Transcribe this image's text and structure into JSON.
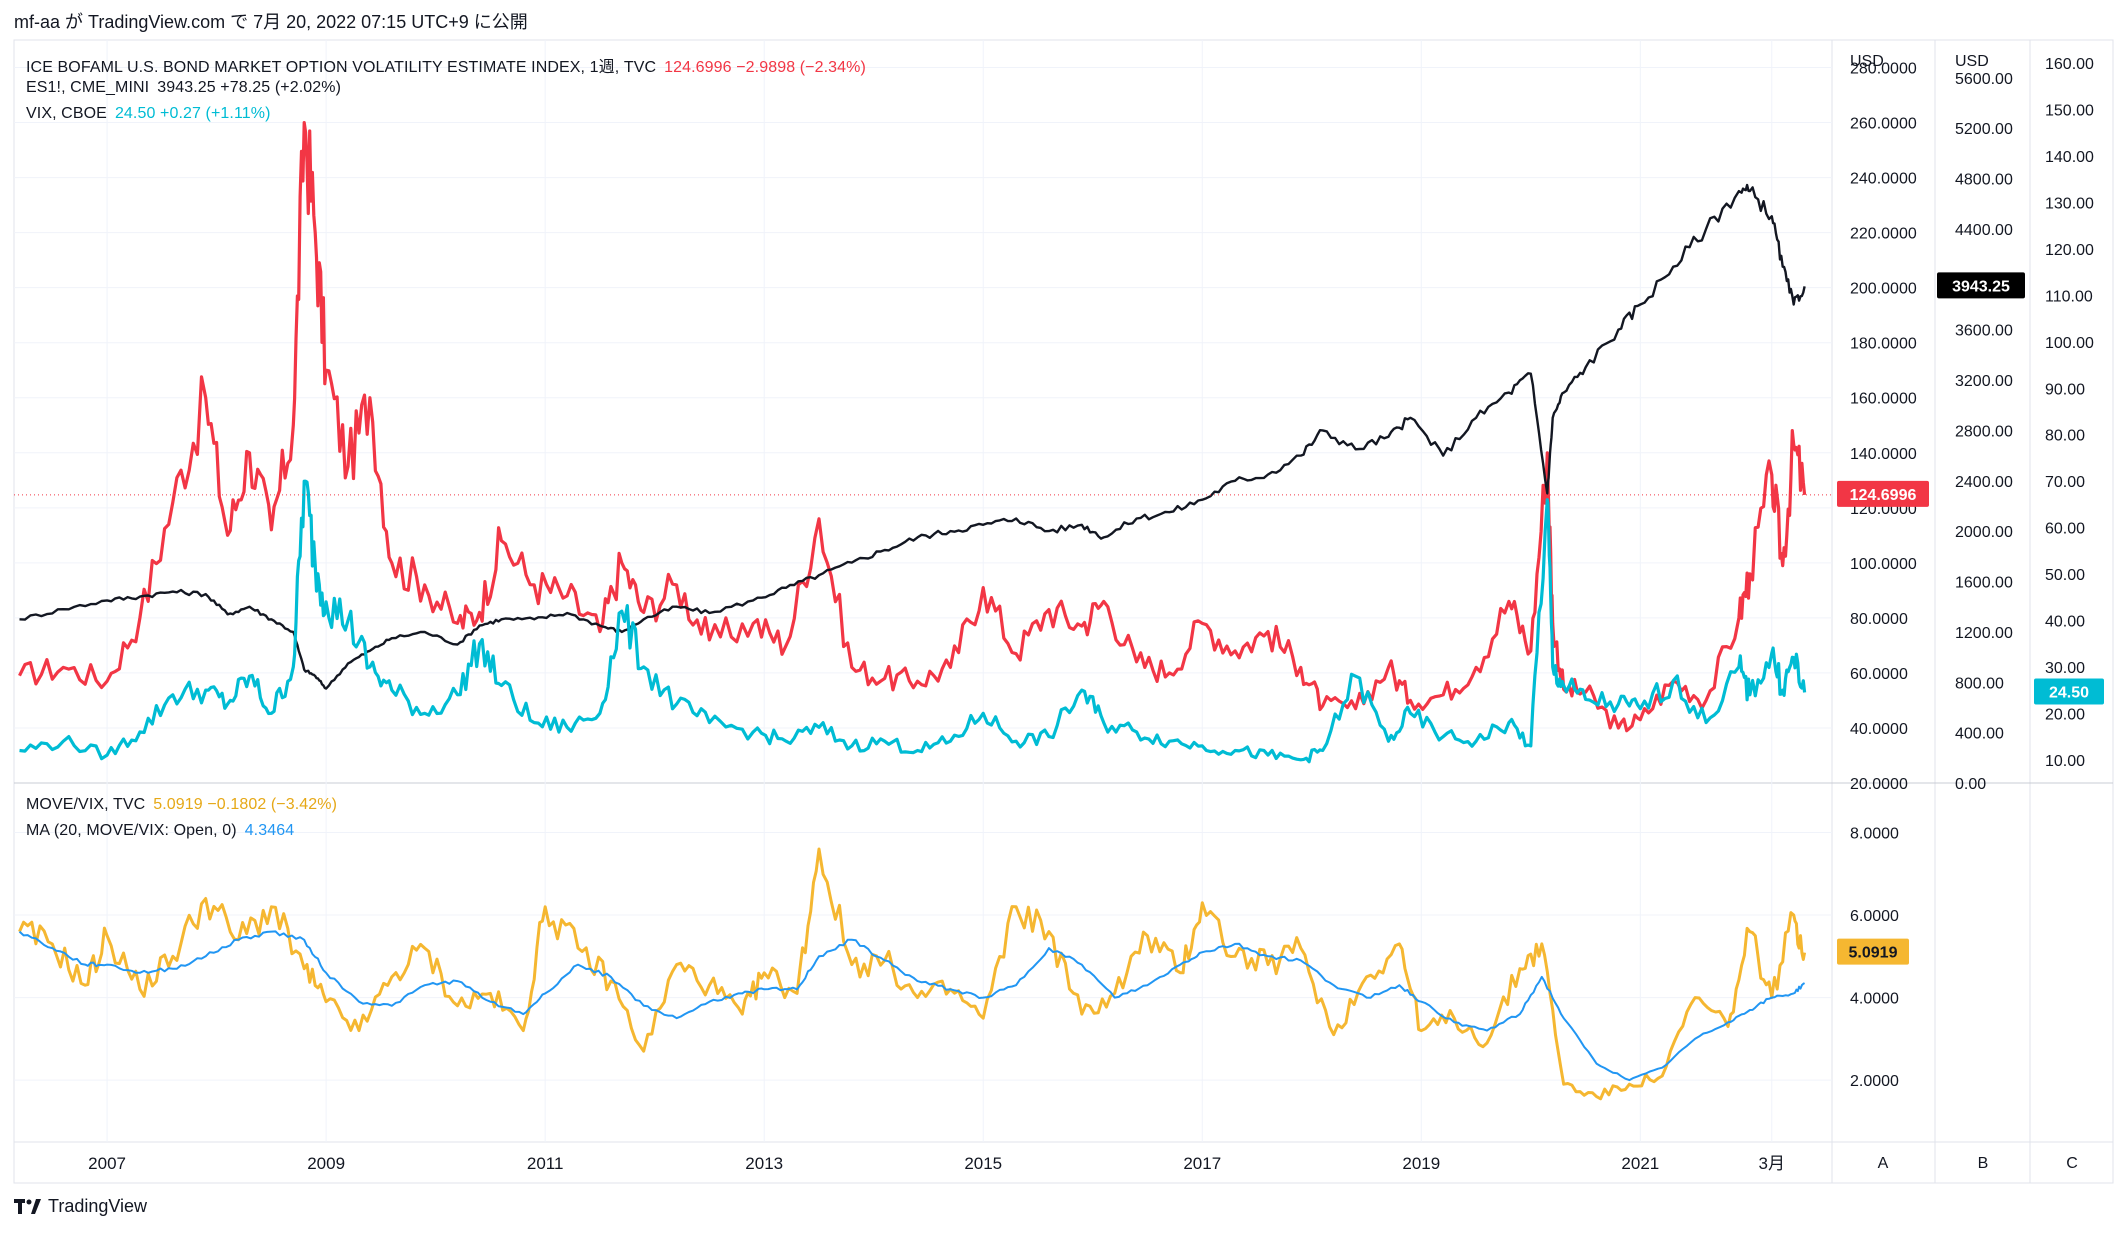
{
  "header": {
    "text": "mf-aa が TradingView.com で 7月 20, 2022 07:15 UTC+9 に公開"
  },
  "footer": {
    "brand": "TradingView"
  },
  "legends": {
    "move": {
      "name": "ICE BOFAML U.S. BOND MARKET OPTION VOLATILITY ESTIMATE INDEX, 1週, TVC",
      "values": "124.6996  −2.9898 (−2.34%)",
      "color": "#f23645"
    },
    "es": {
      "name": "ES1!, CME_MINI",
      "values": "3943.25  +78.25 (+2.02%)",
      "color": "#131722"
    },
    "vix": {
      "name": "VIX, CBOE",
      "values": "24.50  +0.27 (+1.11%)",
      "color": "#00bcd4"
    },
    "ratio": {
      "name": "MOVE/VIX, TVC",
      "values": "5.0919  −0.1802 (−3.42%)",
      "color": "#f5b731"
    },
    "ma": {
      "name": "MA (20, MOVE/VIX: Open, 0)",
      "values": "4.3464",
      "color": "#2196f3"
    }
  },
  "axes": {
    "scale_a_title": "USD",
    "scale_b_title": "USD",
    "scale_a_ticks": [
      "280.0000",
      "260.0000",
      "240.0000",
      "220.0000",
      "200.0000",
      "180.0000",
      "160.0000",
      "140.0000",
      "120.0000",
      "100.0000",
      "80.0000",
      "60.0000",
      "40.0000",
      "20.0000"
    ],
    "scale_b_ticks": [
      "5600.00",
      "5200.00",
      "4800.00",
      "4400.00",
      "4000.00",
      "3600.00",
      "3200.00",
      "2800.00",
      "2400.00",
      "2000.00",
      "1600.00",
      "1200.00",
      "800.00",
      "400.00",
      "0.00"
    ],
    "scale_c_ticks": [
      "160.00",
      "150.00",
      "140.00",
      "130.00",
      "120.00",
      "110.00",
      "100.00",
      "90.00",
      "80.00",
      "70.00",
      "60.00",
      "50.00",
      "40.00",
      "30.00",
      "20.00",
      "10.00"
    ],
    "lower_ticks": [
      "8.0000",
      "6.0000",
      "4.0000",
      "2.0000"
    ],
    "x_ticks": [
      "2007",
      "2009",
      "2011",
      "2013",
      "2015",
      "2017",
      "2019",
      "2021",
      "3月"
    ],
    "scale_buttons": [
      "A",
      "B",
      "C"
    ]
  },
  "badges": {
    "es": {
      "text": "3943.25",
      "bg": "#000000"
    },
    "move": {
      "text": "124.6996",
      "bg": "#f23645"
    },
    "vix": {
      "text": "24.50",
      "bg": "#00bcd4"
    },
    "ratio": {
      "text": "5.0919",
      "bg": "#f5b731"
    }
  },
  "chart_data": [
    {
      "type": "line",
      "title": "ICE BOFAML U.S. BOND MARKET OPTION VOLATILITY ESTIMATE INDEX / ES1! / VIX",
      "x": [
        2006.2,
        2006.6,
        2007.0,
        2007.3,
        2007.6,
        2007.9,
        2008.1,
        2008.3,
        2008.5,
        2008.7,
        2008.8,
        2008.9,
        2009.0,
        2009.2,
        2009.4,
        2009.6,
        2009.9,
        2010.2,
        2010.4,
        2010.6,
        2010.9,
        2011.2,
        2011.5,
        2011.7,
        2011.9,
        2012.2,
        2012.5,
        2012.9,
        2013.2,
        2013.5,
        2013.8,
        2014.1,
        2014.4,
        2014.7,
        2015.0,
        2015.3,
        2015.6,
        2015.9,
        2016.1,
        2016.4,
        2016.7,
        2017.0,
        2017.3,
        2017.6,
        2017.9,
        2018.1,
        2018.4,
        2018.7,
        2018.9,
        2019.2,
        2019.5,
        2019.8,
        2020.0,
        2020.15,
        2020.2,
        2020.3,
        2020.5,
        2020.8,
        2021.0,
        2021.3,
        2021.6,
        2021.9,
        2022.0,
        2022.2,
        2022.3,
        2022.4,
        2022.5
      ],
      "series": [
        {
          "name": "MOVE",
          "color": "#f23645",
          "axis": "A",
          "values": [
            59,
            62,
            57,
            80,
            122,
            160,
            110,
            140,
            112,
            150,
            260,
            220,
            170,
            135,
            160,
            100,
            92,
            78,
            82,
            108,
            92,
            88,
            75,
            100,
            82,
            92,
            72,
            78,
            70,
            116,
            62,
            58,
            57,
            62,
            91,
            67,
            83,
            77,
            86,
            64,
            60,
            78,
            68,
            75,
            62,
            48,
            47,
            62,
            50,
            52,
            62,
            86,
            68,
            140,
            78,
            54,
            53,
            40,
            43,
            57,
            50,
            80,
            96,
            132,
            99,
            143,
            124.7
          ]
        },
        {
          "name": "ES1!",
          "color": "#131722",
          "axis": "B",
          "values": [
            1300,
            1380,
            1450,
            1480,
            1520,
            1500,
            1340,
            1400,
            1300,
            1200,
            900,
            850,
            750,
            950,
            1050,
            1150,
            1200,
            1100,
            1250,
            1300,
            1300,
            1350,
            1250,
            1200,
            1300,
            1400,
            1350,
            1450,
            1550,
            1650,
            1750,
            1850,
            1950,
            2000,
            2050,
            2100,
            2000,
            2050,
            1950,
            2100,
            2150,
            2250,
            2400,
            2450,
            2600,
            2800,
            2650,
            2750,
            2900,
            2600,
            2900,
            3100,
            3250,
            2300,
            2900,
            3100,
            3300,
            3600,
            3800,
            4100,
            4400,
            4700,
            4700,
            4500,
            4100,
            3800,
            3943.25
          ]
        },
        {
          "name": "VIX",
          "color": "#00bcd4",
          "axis": "C",
          "values": [
            12,
            14,
            11,
            16,
            24,
            25,
            22,
            28,
            20,
            30,
            70,
            52,
            44,
            40,
            30,
            25,
            20,
            24,
            35,
            26,
            18,
            17,
            20,
            42,
            30,
            22,
            18,
            16,
            14,
            17,
            13,
            14,
            12,
            14,
            20,
            14,
            15,
            25,
            18,
            16,
            14,
            13,
            12,
            11,
            10,
            12,
            28,
            14,
            20,
            15,
            14,
            18,
            13,
            66,
            30,
            26,
            23,
            22,
            21,
            27,
            18,
            30,
            24,
            33,
            25,
            32,
            24.5
          ]
        }
      ],
      "ylim_A": [
        20,
        290
      ],
      "ylim_B": [
        0,
        5900
      ],
      "ylim_C": [
        5,
        165
      ],
      "legend": "top-left"
    },
    {
      "type": "line",
      "title": "MOVE/VIX",
      "x": [
        2006.2,
        2006.5,
        2006.8,
        2007.0,
        2007.3,
        2007.6,
        2007.9,
        2008.2,
        2008.5,
        2008.8,
        2009.0,
        2009.3,
        2009.6,
        2009.9,
        2010.2,
        2010.5,
        2010.8,
        2011.0,
        2011.3,
        2011.6,
        2011.9,
        2012.2,
        2012.5,
        2012.8,
        2013.0,
        2013.3,
        2013.5,
        2013.8,
        2014.1,
        2014.4,
        2014.7,
        2015.0,
        2015.3,
        2015.6,
        2015.9,
        2016.2,
        2016.5,
        2016.8,
        2017.0,
        2017.3,
        2017.6,
        2017.9,
        2018.2,
        2018.5,
        2018.8,
        2019.0,
        2019.3,
        2019.6,
        2019.9,
        2020.1,
        2020.3,
        2020.6,
        2020.9,
        2021.2,
        2021.5,
        2021.8,
        2022.0,
        2022.2,
        2022.4,
        2022.5
      ],
      "series": [
        {
          "name": "MOVE/VIX",
          "color": "#f5b731",
          "values": [
            5.6,
            5.3,
            4.3,
            5.5,
            4.2,
            5.0,
            6.4,
            5.4,
            6.2,
            4.7,
            3.9,
            3.2,
            4.5,
            5.2,
            3.8,
            4.1,
            3.2,
            6.2,
            5.2,
            4.4,
            2.7,
            4.8,
            4.3,
            3.6,
            4.6,
            4.1,
            7.6,
            4.8,
            4.9,
            4.0,
            4.2,
            3.5,
            6.2,
            5.6,
            3.6,
            4.1,
            5.5,
            4.6,
            6.3,
            5.0,
            4.8,
            5.2,
            3.1,
            4.5,
            5.3,
            3.2,
            3.5,
            2.9,
            4.7,
            5.3,
            1.9,
            1.6,
            1.9,
            2.1,
            4.0,
            3.3,
            5.6,
            4.0,
            6.0,
            5.09
          ]
        },
        {
          "name": "MA 20",
          "color": "#2196f3",
          "values": [
            5.6,
            5.2,
            4.8,
            4.8,
            4.6,
            4.7,
            5.0,
            5.4,
            5.6,
            5.4,
            4.6,
            3.9,
            3.8,
            4.3,
            4.4,
            3.9,
            3.6,
            4.1,
            4.8,
            4.5,
            3.8,
            3.5,
            3.9,
            4.1,
            4.2,
            4.2,
            5.0,
            5.4,
            4.9,
            4.4,
            4.2,
            4.0,
            4.3,
            5.2,
            4.8,
            4.0,
            4.3,
            4.8,
            5.1,
            5.3,
            5.0,
            4.9,
            4.3,
            4.0,
            4.3,
            3.9,
            3.4,
            3.2,
            3.6,
            4.5,
            3.5,
            2.4,
            2.0,
            2.3,
            3.0,
            3.4,
            3.7,
            4.0,
            4.1,
            4.35
          ]
        }
      ],
      "ylim": [
        0.5,
        9.2
      ],
      "legend": "top-left"
    }
  ]
}
